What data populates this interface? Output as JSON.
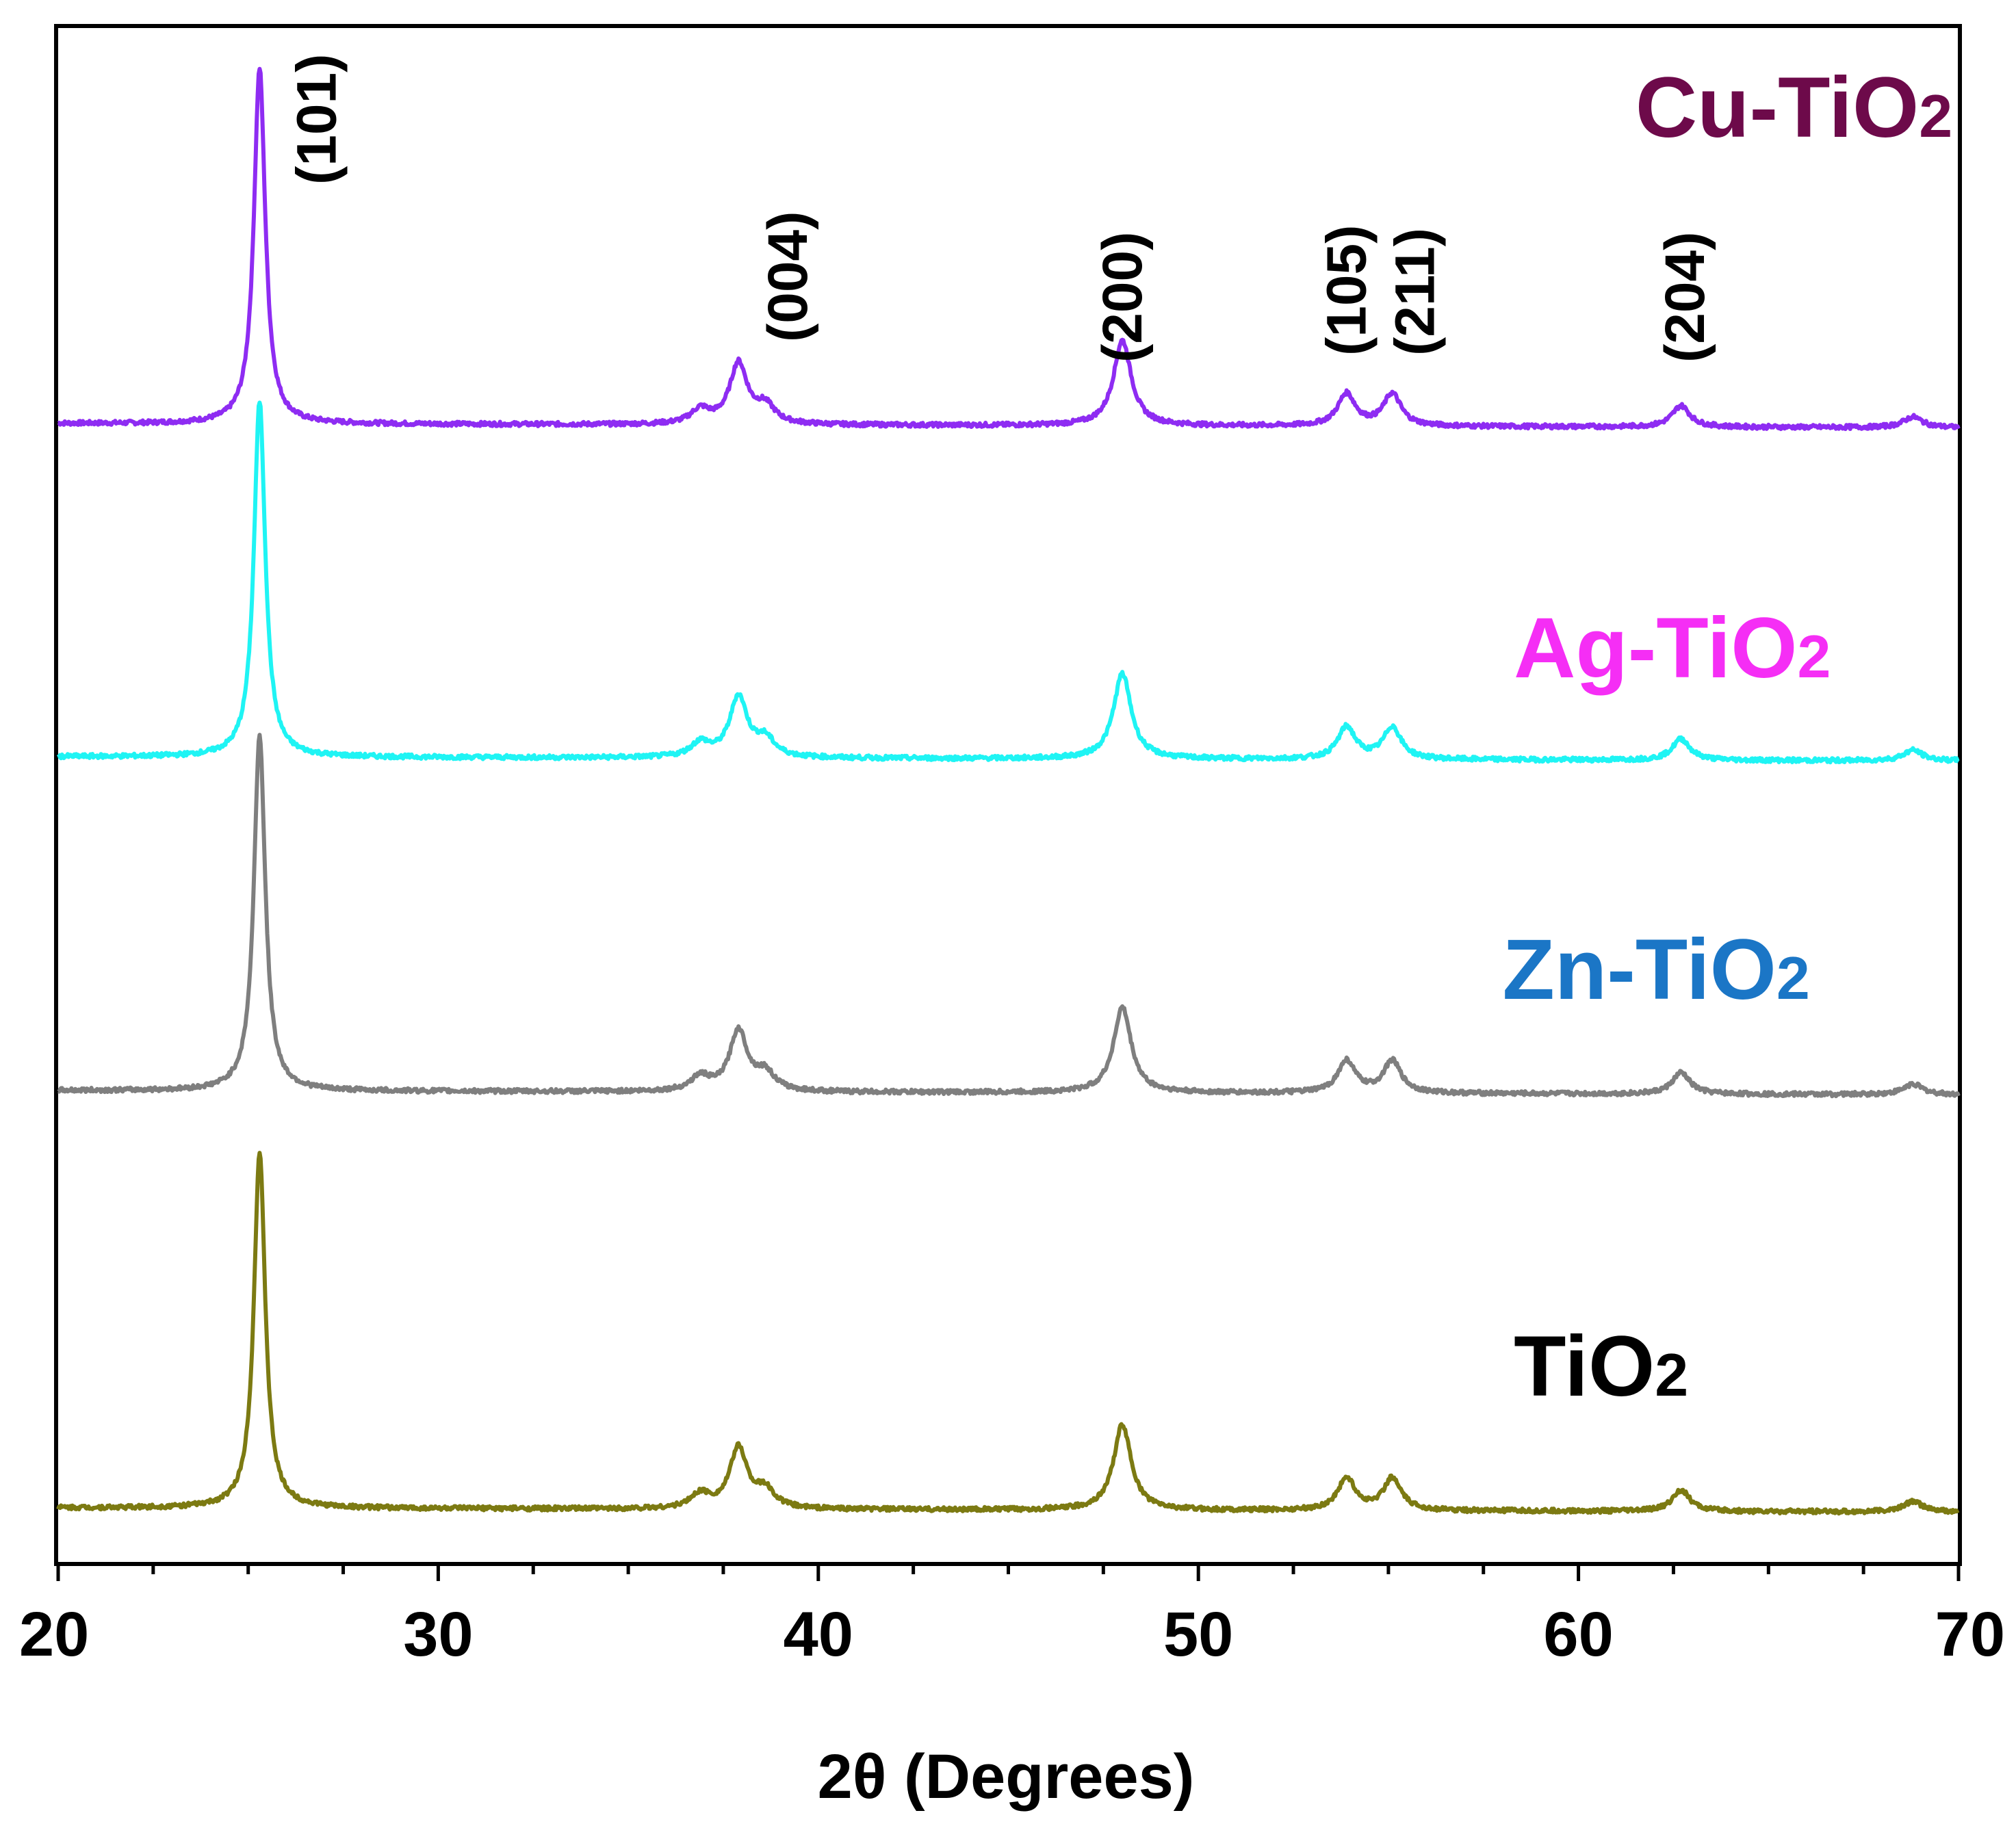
{
  "chart_data": {
    "type": "line",
    "title": "",
    "xlabel": "2θ (Degrees)",
    "ylabel": "",
    "xlim": [
      20,
      70
    ],
    "xticks": [
      20,
      30,
      40,
      50,
      60,
      70
    ],
    "grid": false,
    "y_axis_ticks_shown": false,
    "series": [
      {
        "name": "Cu-TiO₂",
        "label_text": "Cu-TiO",
        "label_subscript": "2",
        "color": "#8e2cf2",
        "label_color": "#6d0a4a",
        "label_x": 61.5,
        "offset": 3
      },
      {
        "name": "Ag-TiO₂",
        "label_text": "Ag-TiO",
        "label_subscript": "2",
        "color": "#1ff4f4",
        "label_color": "#f52ef5",
        "label_x": 58.3,
        "offset": 2
      },
      {
        "name": "Zn-TiO₂",
        "label_text": "Zn-TiO",
        "label_subscript": "2",
        "color": "#7f7f7f",
        "label_color": "#1b76c6",
        "label_x": 58.0,
        "offset": 1
      },
      {
        "name": "TiO₂",
        "label_text": "TiO",
        "label_subscript": "2",
        "color": "#7c7a12",
        "label_color": "#000000",
        "label_x": 58.3,
        "offset": 0
      }
    ],
    "peaks": [
      {
        "label": "(101)",
        "x": 25.3,
        "relative_height": 1.0
      },
      {
        "label": "(004)",
        "x": 37.9,
        "relative_height": 0.17
      },
      {
        "label": "(200)",
        "x": 48.0,
        "relative_height": 0.24
      },
      {
        "label": "(105)",
        "x": 53.9,
        "relative_height": 0.09
      },
      {
        "label": "(211)",
        "x": 55.1,
        "relative_height": 0.09
      },
      {
        "label": "(204)",
        "x": 62.7,
        "relative_height": 0.06
      }
    ],
    "minor_peaks": [
      {
        "x": 36.9,
        "relative_height": 0.04
      },
      {
        "x": 38.6,
        "relative_height": 0.05
      },
      {
        "x": 68.8,
        "relative_height": 0.03
      }
    ]
  }
}
